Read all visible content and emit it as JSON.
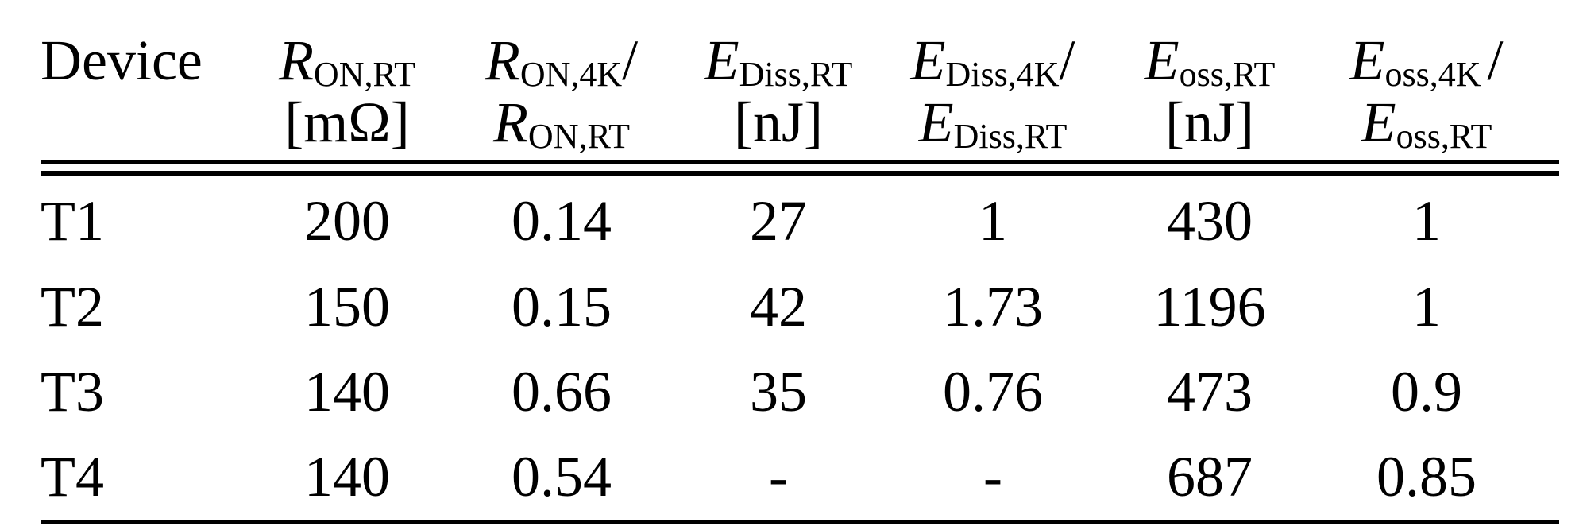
{
  "table": {
    "header": [
      {
        "text": "Device"
      },
      {
        "symbol": "R",
        "subscript": "ON,RT",
        "unit": "[mΩ]"
      },
      {
        "symbol": "R",
        "subscript": "ON,4K",
        "slash": "/",
        "symbol2": "R",
        "subscript2": "ON,RT"
      },
      {
        "symbol": "E",
        "subscript": "Diss,RT",
        "unit": "[nJ]"
      },
      {
        "symbol": "E",
        "subscript": "Diss,4K",
        "slash": "/",
        "symbol2": "E",
        "subscript2": "Diss,RT"
      },
      {
        "symbol": "E",
        "subscript": "oss,RT",
        "unit": "[nJ]"
      },
      {
        "symbol": "E",
        "subscript": "oss,4K",
        "slash": "/",
        "symbol2": "E",
        "subscript2": "oss,RT"
      }
    ],
    "rows": [
      [
        "T1",
        "200",
        "0.14",
        "27",
        "1",
        "430",
        "1"
      ],
      [
        "T2",
        "150",
        "0.15",
        "42",
        "1.73",
        "1196",
        "1"
      ],
      [
        "T3",
        "140",
        "0.66",
        "35",
        "0.76",
        "473",
        "0.9"
      ],
      [
        "T4",
        "140",
        "0.54",
        "-",
        "-",
        "687",
        "0.85"
      ]
    ]
  }
}
